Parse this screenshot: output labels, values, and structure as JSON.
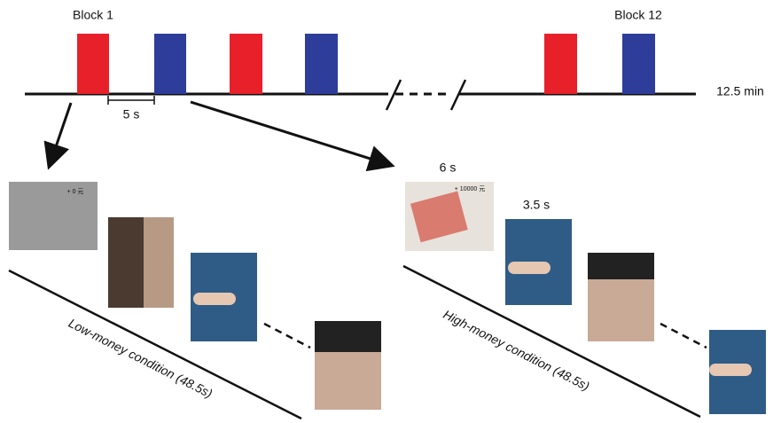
{
  "timeline": {
    "first_block": "Block 1",
    "last_block": "Block 12",
    "interval": "5 s",
    "duration": "12.5 min"
  },
  "conditions": [
    {
      "label": "Low-money condition (48.5s)",
      "reward": "+ 0 元"
    },
    {
      "label": "High-money condition (48.5s)",
      "reward": "+ 10000 元",
      "reward_duration": "6 s",
      "stimulus_duration": "3.5 s"
    }
  ]
}
